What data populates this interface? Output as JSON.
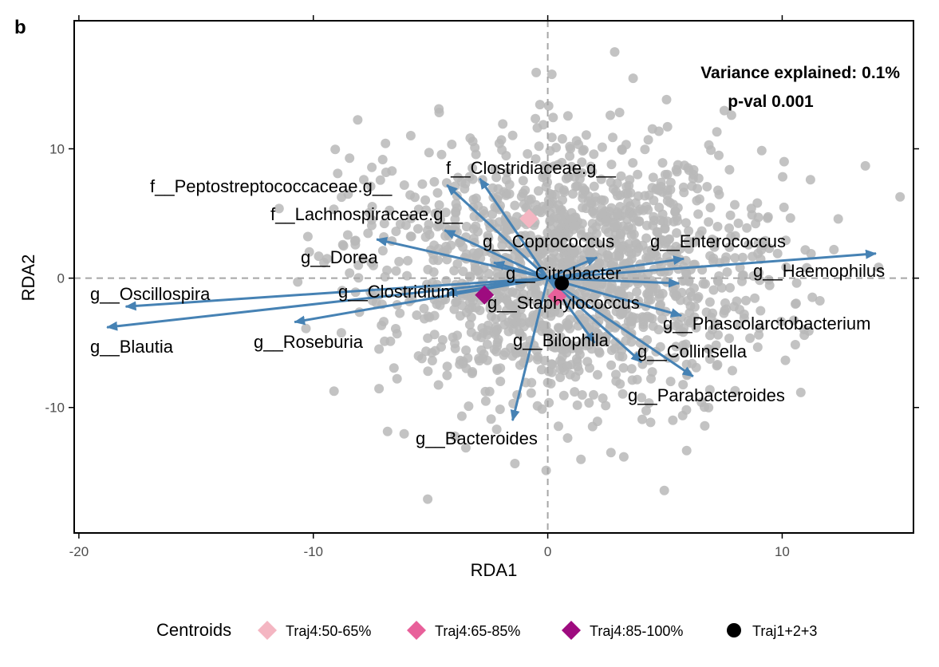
{
  "chart_data": {
    "type": "scatter",
    "panel_label": "b",
    "xlabel": "RDA1",
    "ylabel": "RDA2",
    "xlim": [
      -20.2,
      15.6
    ],
    "ylim": [
      -19.7,
      19.9
    ],
    "x_ticks": [
      {
        "value": -20,
        "label": "-20"
      },
      {
        "value": -10,
        "label": "-10"
      },
      {
        "value": 0,
        "label": "0"
      },
      {
        "value": 10,
        "label": "10"
      }
    ],
    "y_ticks": [
      {
        "value": -10,
        "label": "-10"
      },
      {
        "value": 0,
        "label": "0"
      },
      {
        "value": 10,
        "label": "10"
      }
    ],
    "annotations": [
      "Variance explained: 0.1%",
      "p-val 0.001"
    ],
    "point_color": "#b8b8b8",
    "arrow_color": "#4682b4",
    "grid": false,
    "legend_position": "bottom",
    "legend_title": "Centroids",
    "centroids": [
      {
        "name": "Traj4:50-65%",
        "x": -0.8,
        "y": 4.6,
        "shape": "diamond",
        "color": "#f4b6c2"
      },
      {
        "name": "Traj4:65-85%",
        "x": 0.4,
        "y": -1.4,
        "shape": "diamond",
        "color": "#e8609a"
      },
      {
        "name": "Traj4:85-100%",
        "x": -2.7,
        "y": -1.3,
        "shape": "diamond",
        "color": "#9e0b7f"
      },
      {
        "name": "Traj1+2+3",
        "x": 0.6,
        "y": -0.4,
        "shape": "circle",
        "color": "#000000"
      }
    ],
    "arrows": [
      {
        "label": "g__Oscillospira",
        "x": -18.0,
        "y": -2.2
      },
      {
        "label": "g__Blautia",
        "x": -18.8,
        "y": -3.8
      },
      {
        "label": "g__Roseburia",
        "x": -10.8,
        "y": -3.4
      },
      {
        "label": "g__Clostridium",
        "x": -4.3,
        "y": -1.2
      },
      {
        "label": "g__Dorea",
        "x": -7.3,
        "y": 3.0
      },
      {
        "label": "f__Lachnospiraceae.g__",
        "x": -4.4,
        "y": 3.7
      },
      {
        "label": "f__Peptostreptococcaceae.g__",
        "x": -4.3,
        "y": 7.2
      },
      {
        "label": "f__Clostridiaceae.g__",
        "x": -2.9,
        "y": 7.7
      },
      {
        "label": "g__Coprococcus",
        "x": -2.3,
        "y": 1.2
      },
      {
        "label": "g__Citrobacter",
        "x": 2.1,
        "y": 1.6
      },
      {
        "label": "g__Enterococcus",
        "x": 5.8,
        "y": 1.5
      },
      {
        "label": "g__Haemophilus",
        "x": 14.0,
        "y": 1.9
      },
      {
        "label": "g__Staphylococcus",
        "x": 5.6,
        "y": -0.4
      },
      {
        "label": "g__Phascolarctobacterium",
        "x": 5.7,
        "y": -2.9
      },
      {
        "label": "g__Collinsella",
        "x": 6.2,
        "y": -7.6
      },
      {
        "label": "g__Parabacteroides",
        "x": 4.0,
        "y": -6.5
      },
      {
        "label": "g__Bilophila",
        "x": 2.0,
        "y": -5.0
      },
      {
        "label": "g__Bacteroides",
        "x": -1.5,
        "y": -11.0
      }
    ]
  }
}
